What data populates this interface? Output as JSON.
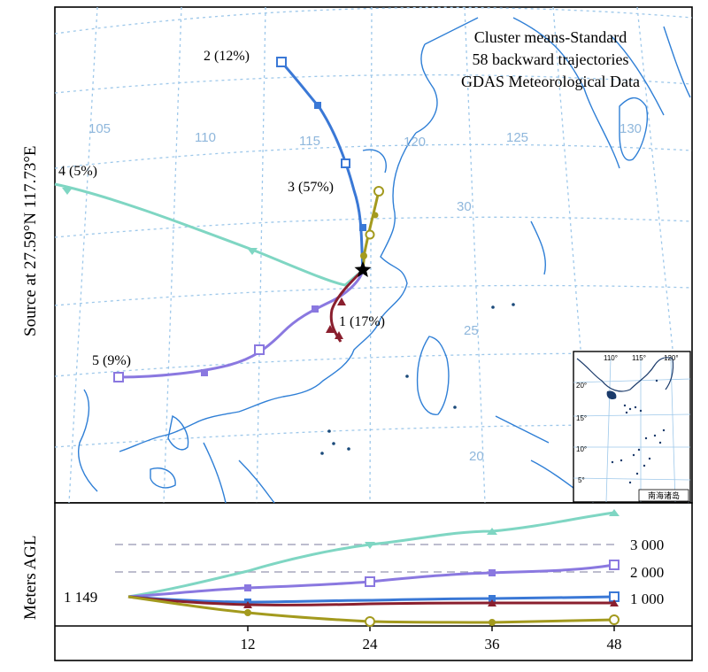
{
  "map": {
    "title_lines": [
      "Cluster means-Standard",
      "58 backward trajectories",
      "GDAS Meteorological Data"
    ],
    "source_label": "Source at 27.59°N 117.73°E",
    "longitude_labels": [
      "105",
      "110",
      "115",
      "120",
      "125",
      "130"
    ],
    "latitude_labels": [
      "30",
      "25",
      "20"
    ],
    "grid_color": "#9ec8ea",
    "coast_color": "#2f7fd6",
    "source_marker": "star-icon"
  },
  "inset": {
    "lon_labels": [
      "110°",
      "115°",
      "120°"
    ],
    "lat_labels": [
      "20°",
      "15°",
      "10°",
      "5°"
    ],
    "caption": "南海诸岛"
  },
  "trajectories": [
    {
      "label": "2 (12%)",
      "color": "#3a78d6",
      "marker": "square-marker-icon"
    },
    {
      "label": "3 (57%)",
      "color": "#a39a1e",
      "marker": "circle-marker-icon"
    },
    {
      "label": "4 (5%)",
      "color": "#7fd6c3",
      "marker": "triangle-down-marker-icon"
    },
    {
      "label": "1 (17%)",
      "color": "#8a1f2e",
      "marker": "triangle-up-marker-icon"
    },
    {
      "label": "5 (9%)",
      "color": "#8a78e0",
      "marker": "square-marker-icon"
    }
  ],
  "profile": {
    "ylabel": "Meters AGL",
    "start_label": "1 149",
    "y_labels": [
      "3 000",
      "2 000",
      "1 000"
    ],
    "x_labels": [
      "12",
      "24",
      "36",
      "48"
    ]
  }
}
